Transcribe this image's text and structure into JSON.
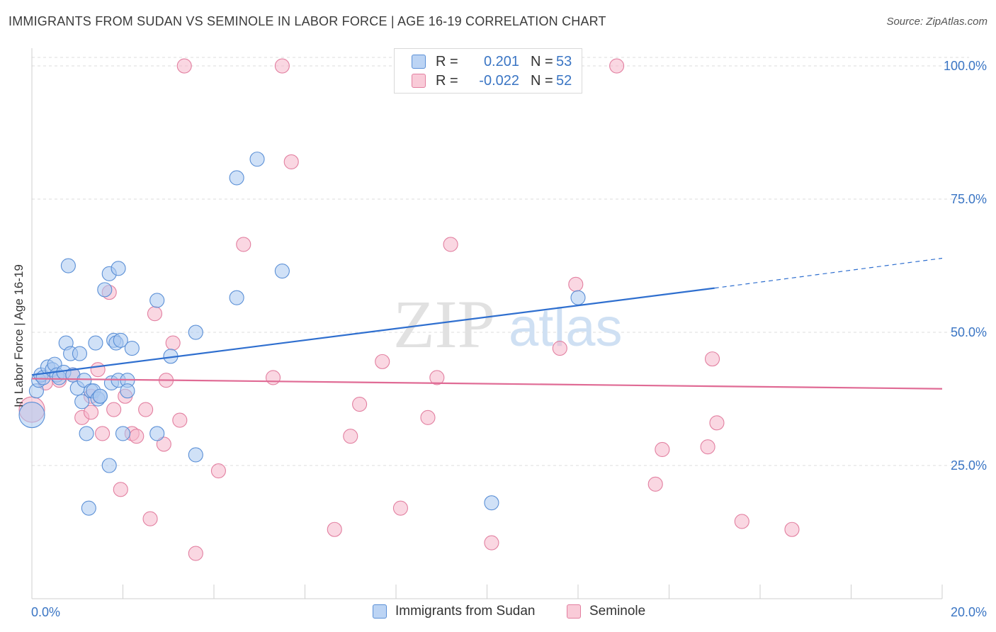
{
  "title": "IMMIGRANTS FROM SUDAN VS SEMINOLE IN LABOR FORCE | AGE 16-19 CORRELATION CHART",
  "source": "Source: ZipAtlas.com",
  "watermark": {
    "zip": "ZIP",
    "atlas": "atlas"
  },
  "colors": {
    "blue_fill": "#a9c8f0",
    "blue_stroke": "#5a8fd6",
    "blue_line": "#2f6fcf",
    "pink_fill": "#f6b7ca",
    "pink_stroke": "#e27fa0",
    "pink_line": "#e06b95",
    "axis_text": "#3a75c4",
    "grid": "#dcdcdc"
  },
  "legend_top": [
    {
      "swatch": "blue",
      "r_label": "R =",
      "r_value": "0.201",
      "n_label": "N =",
      "n_value": "53"
    },
    {
      "swatch": "pink",
      "r_label": "R =",
      "r_value": "-0.022",
      "n_label": "N =",
      "n_value": "52"
    }
  ],
  "legend_bottom": [
    {
      "swatch": "blue",
      "label": "Immigrants from Sudan"
    },
    {
      "swatch": "pink",
      "label": "Seminole"
    }
  ],
  "chart_data": {
    "type": "scatter",
    "ylabel": "In Labor Force | Age 16-19",
    "xlim": [
      0,
      20
    ],
    "ylim": [
      0,
      102
    ],
    "x_tick_labels": [
      {
        "value": 0,
        "label": "0.0%"
      },
      {
        "value": 20,
        "label": "20.0%"
      }
    ],
    "y_tick_labels": [
      {
        "value": 25,
        "label": "25.0%"
      },
      {
        "value": 50,
        "label": "50.0%"
      },
      {
        "value": 75,
        "label": "75.0%"
      },
      {
        "value": 100,
        "label": "100.0%"
      }
    ],
    "grid": true,
    "series": [
      {
        "name": "Immigrants from Sudan",
        "color": "blue",
        "trend": {
          "x0": 0,
          "y0": 42.0,
          "x1": 15.0,
          "y1": 58.3,
          "dash_to_x": 20.0,
          "dash_to_y": 63.9
        },
        "points": [
          [
            0.0,
            34.5,
            18
          ],
          [
            0.1,
            39,
            10
          ],
          [
            0.15,
            41,
            10
          ],
          [
            0.2,
            42,
            10
          ],
          [
            0.25,
            41.5,
            10
          ],
          [
            0.35,
            43.5,
            10
          ],
          [
            0.45,
            43,
            10
          ],
          [
            0.5,
            44,
            10
          ],
          [
            0.55,
            42,
            10
          ],
          [
            0.6,
            41.5,
            10
          ],
          [
            0.7,
            42.5,
            10
          ],
          [
            0.75,
            48,
            10
          ],
          [
            0.8,
            62.5,
            10
          ],
          [
            0.85,
            46,
            10
          ],
          [
            0.9,
            42,
            10
          ],
          [
            1.0,
            39.5,
            10
          ],
          [
            1.05,
            46,
            10
          ],
          [
            1.1,
            37,
            10
          ],
          [
            1.15,
            41,
            10
          ],
          [
            1.2,
            31,
            10
          ],
          [
            1.25,
            17,
            10
          ],
          [
            1.3,
            39,
            10
          ],
          [
            1.35,
            39,
            10
          ],
          [
            1.4,
            48,
            10
          ],
          [
            1.45,
            37.5,
            10
          ],
          [
            1.5,
            38,
            10
          ],
          [
            1.5,
            38,
            10
          ],
          [
            1.6,
            58,
            10
          ],
          [
            1.7,
            61,
            10
          ],
          [
            1.7,
            25,
            10
          ],
          [
            1.75,
            40.5,
            10
          ],
          [
            1.8,
            48.5,
            10
          ],
          [
            1.85,
            48,
            10
          ],
          [
            1.9,
            41,
            10
          ],
          [
            1.95,
            48.5,
            10
          ],
          [
            1.9,
            62,
            10
          ],
          [
            2.0,
            31,
            10
          ],
          [
            2.1,
            41,
            10
          ],
          [
            2.1,
            39,
            10
          ],
          [
            2.2,
            47,
            10
          ],
          [
            2.75,
            56,
            10
          ],
          [
            2.75,
            31,
            10
          ],
          [
            3.05,
            45.5,
            10
          ],
          [
            3.6,
            27,
            10
          ],
          [
            3.6,
            50,
            10
          ],
          [
            4.5,
            79,
            10
          ],
          [
            4.5,
            56.5,
            10
          ],
          [
            4.95,
            82.5,
            10
          ],
          [
            5.5,
            61.5,
            10
          ],
          [
            10.1,
            18,
            10
          ],
          [
            12.0,
            56.5,
            10
          ]
        ]
      },
      {
        "name": "Seminole",
        "color": "pink",
        "trend": {
          "x0": 0,
          "y0": 41.3,
          "x1": 20.0,
          "y1": 39.4
        },
        "points": [
          [
            0.0,
            35.5,
            18
          ],
          [
            0.3,
            40.5,
            10
          ],
          [
            0.6,
            41,
            10
          ],
          [
            0.9,
            42,
            10
          ],
          [
            1.1,
            34,
            10
          ],
          [
            1.3,
            38,
            10
          ],
          [
            1.3,
            35,
            10
          ],
          [
            1.45,
            43,
            10
          ],
          [
            1.55,
            31,
            10
          ],
          [
            1.7,
            57.5,
            10
          ],
          [
            1.8,
            35.5,
            10
          ],
          [
            1.95,
            20.5,
            10
          ],
          [
            2.05,
            38,
            10
          ],
          [
            2.2,
            31,
            10
          ],
          [
            2.3,
            30.5,
            10
          ],
          [
            2.5,
            35.5,
            10
          ],
          [
            2.6,
            15,
            10
          ],
          [
            2.7,
            53.5,
            10
          ],
          [
            2.9,
            29,
            10
          ],
          [
            2.95,
            41,
            10
          ],
          [
            3.1,
            48,
            10
          ],
          [
            3.25,
            33.5,
            10
          ],
          [
            3.35,
            100,
            10
          ],
          [
            3.6,
            8.5,
            10
          ],
          [
            4.1,
            24,
            10
          ],
          [
            4.65,
            66.5,
            10
          ],
          [
            5.3,
            41.5,
            10
          ],
          [
            5.5,
            100,
            10
          ],
          [
            5.7,
            82,
            10
          ],
          [
            6.65,
            13,
            10
          ],
          [
            7.0,
            30.5,
            10
          ],
          [
            7.2,
            36.5,
            10
          ],
          [
            7.7,
            44.5,
            10
          ],
          [
            8.1,
            17,
            10
          ],
          [
            8.7,
            34,
            10
          ],
          [
            8.9,
            41.5,
            10
          ],
          [
            9.2,
            66.5,
            10
          ],
          [
            10.1,
            10.5,
            10
          ],
          [
            11.6,
            47,
            10
          ],
          [
            11.95,
            59,
            10
          ],
          [
            12.85,
            100,
            10
          ],
          [
            13.7,
            21.5,
            10
          ],
          [
            13.85,
            28,
            10
          ],
          [
            14.85,
            28.5,
            10
          ],
          [
            14.95,
            45,
            10
          ],
          [
            15.05,
            33,
            10
          ],
          [
            15.6,
            14.5,
            10
          ],
          [
            16.7,
            13,
            10
          ]
        ]
      }
    ]
  }
}
